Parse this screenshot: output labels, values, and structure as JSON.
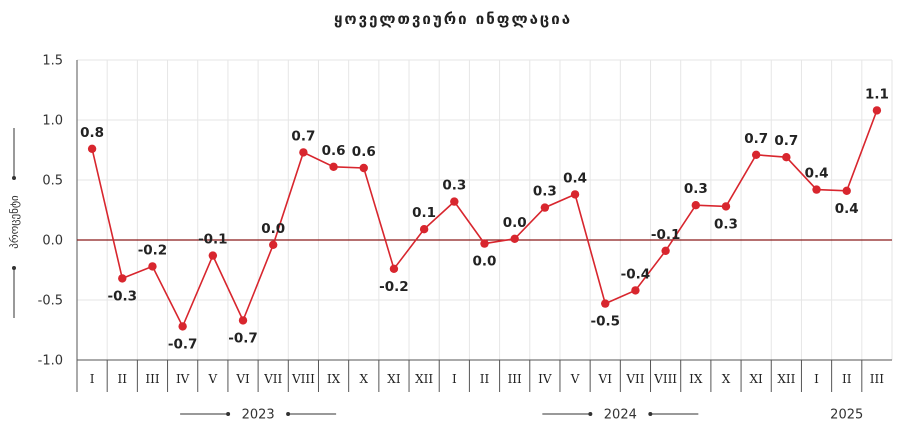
{
  "chart_data": {
    "type": "line",
    "title": "ყოველთვიური ინფლაცია",
    "ylabel": "პროცენტი",
    "ylim": [
      -1.0,
      1.5
    ],
    "yticks": [
      "1.5",
      "1.0",
      "0.5",
      "0.0",
      "-0.5",
      "-1.0"
    ],
    "grid": true,
    "categories": [
      "I",
      "II",
      "III",
      "IV",
      "V",
      "VI",
      "VII",
      "VIII",
      "IX",
      "X",
      "XI",
      "XII",
      "I",
      "II",
      "III",
      "IV",
      "V",
      "VI",
      "VII",
      "VIII",
      "IX",
      "X",
      "XI",
      "XII",
      "I",
      "II",
      "III"
    ],
    "years": [
      {
        "label": "2023",
        "start": 0,
        "end": 11
      },
      {
        "label": "2024",
        "start": 12,
        "end": 23
      },
      {
        "label": "2025",
        "start": 24,
        "end": 26
      }
    ],
    "series": [
      {
        "color": "#d8262e",
        "values": [
          0.76,
          -0.32,
          -0.22,
          -0.72,
          -0.13,
          -0.67,
          -0.04,
          0.73,
          0.61,
          0.6,
          -0.24,
          0.09,
          0.32,
          -0.03,
          0.01,
          0.27,
          0.38,
          -0.53,
          -0.42,
          -0.09,
          0.29,
          0.28,
          0.71,
          0.69,
          0.42,
          0.41,
          1.08
        ],
        "labels": [
          "0.8",
          "-0.3",
          "-0.2",
          "-0.7",
          "-0.1",
          "-0.7",
          "0.0",
          "0.7",
          "0.6",
          "0.6",
          "-0.2",
          "0.1",
          "0.3",
          "0.0",
          "0.0",
          "0.3",
          "0.4",
          "-0.5",
          "-0.4",
          "-0.1",
          "0.3",
          "0.3",
          "0.7",
          "0.7",
          "0.4",
          "0.4",
          "1.1"
        ]
      }
    ],
    "colors": {
      "line": "#d8262e",
      "zero_line": "#8b1a1a",
      "grid": "#e6e6e6"
    }
  }
}
